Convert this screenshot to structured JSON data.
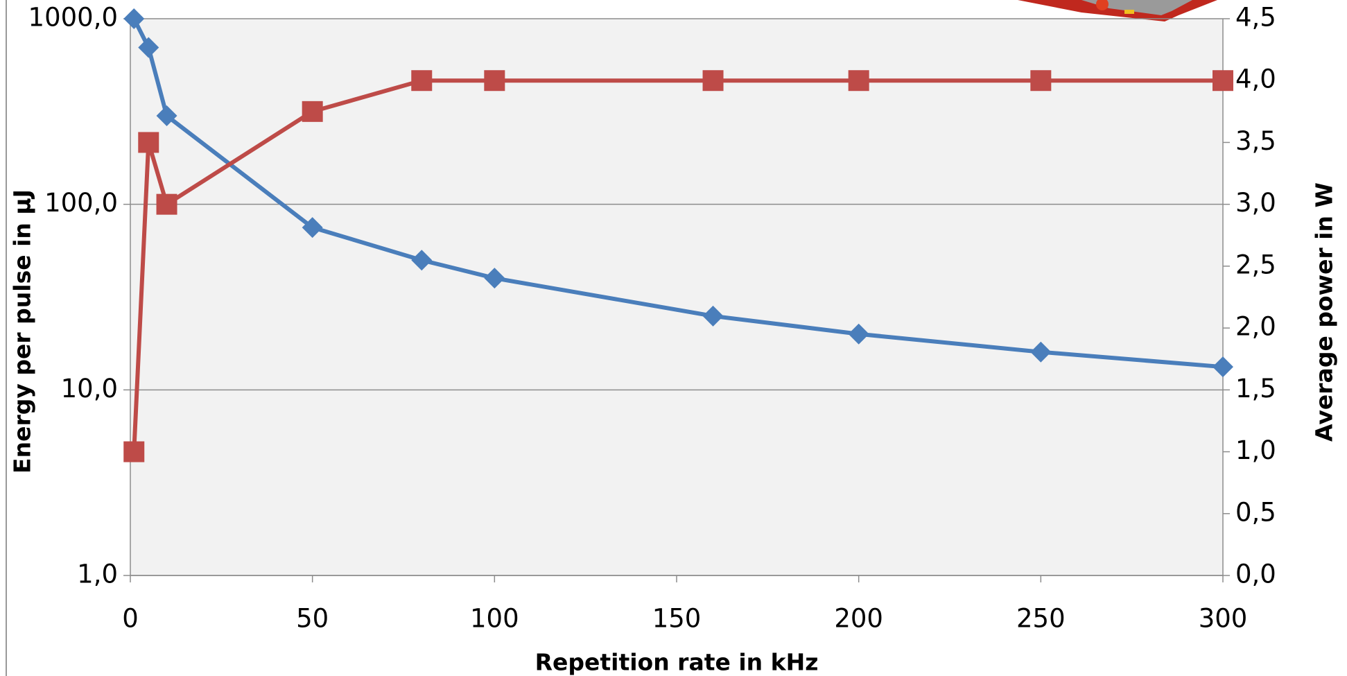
{
  "chart_data": {
    "type": "line",
    "x_label": "Repetition rate in kHz",
    "y_label": "Energy per pulse in µJ",
    "y2_label": "Average power in W",
    "x": [
      1,
      5,
      10,
      50,
      80,
      100,
      160,
      200,
      250,
      300
    ],
    "series": [
      {
        "color": "#4a7ebb",
        "marker": "diamond",
        "values": [
          1000,
          700,
          300,
          75,
          50,
          40,
          25,
          20,
          16,
          13.3
        ]
      },
      {
        "color": "#be4b48",
        "marker": "square",
        "axis": "y2",
        "values": [
          1.0,
          3.5,
          3.0,
          3.75,
          4.0,
          4.0,
          4.0,
          4.0,
          4.0,
          4.0
        ]
      }
    ],
    "xlim": [
      0,
      300
    ],
    "xticks": [
      0,
      50,
      100,
      150,
      200,
      250,
      300
    ],
    "ylim": [
      1,
      1000
    ],
    "yscale": "log",
    "yticks": [
      {
        "value": 1,
        "label": "1,0"
      },
      {
        "value": 10,
        "label": "10,0"
      },
      {
        "value": 100,
        "label": "100,0"
      },
      {
        "value": 1000,
        "label": "1000,0"
      }
    ],
    "y2lim": [
      0,
      4.5
    ],
    "y2ticks": [
      {
        "value": 0,
        "label": "0,0"
      },
      {
        "value": 0.5,
        "label": "0,5"
      },
      {
        "value": 1,
        "label": "1,0"
      },
      {
        "value": 1.5,
        "label": "1,5"
      },
      {
        "value": 2,
        "label": "2,0"
      },
      {
        "value": 2.5,
        "label": "2,5"
      },
      {
        "value": 3,
        "label": "3,0"
      },
      {
        "value": 3.5,
        "label": "3,5"
      },
      {
        "value": 4,
        "label": "4,0"
      },
      {
        "value": 4.5,
        "label": "4,5"
      }
    ],
    "grid": true
  }
}
